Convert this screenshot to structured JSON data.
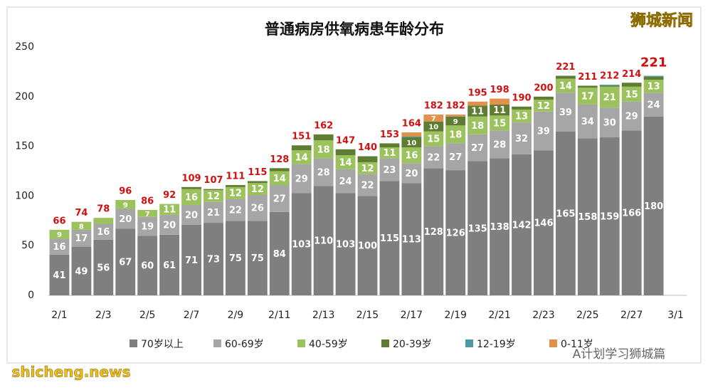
{
  "chart_data": {
    "type": "stacked-bar",
    "title": "普通病房供氧病患年龄分布",
    "categories": [
      "2/1",
      null,
      "2/3",
      null,
      "2/5",
      null,
      "2/7",
      null,
      "2/9",
      null,
      "2/11",
      null,
      "2/13",
      null,
      "2/15",
      null,
      "2/17",
      null,
      "2/19",
      null,
      "2/21",
      null,
      "2/23",
      null,
      "2/25",
      null,
      "2/27",
      null,
      "3/1"
    ],
    "series": [
      {
        "name": "70岁以上",
        "color": "#7f7f7f",
        "values": [
          41,
          49,
          56,
          67,
          60,
          61,
          71,
          73,
          75,
          75,
          84,
          103,
          110,
          103,
          100,
          115,
          113,
          128,
          126,
          135,
          138,
          142,
          146,
          165,
          158,
          159,
          166,
          180,
          null
        ]
      },
      {
        "name": "60-69岁",
        "color": "#a6a6a6",
        "values": [
          16,
          17,
          16,
          20,
          19,
          20,
          20,
          21,
          22,
          26,
          27,
          29,
          28,
          24,
          22,
          23,
          20,
          22,
          27,
          27,
          28,
          32,
          39,
          39,
          34,
          30,
          29,
          24,
          null
        ]
      },
      {
        "name": "40-59岁",
        "color": "#9cc25e",
        "values": [
          9,
          8,
          6,
          9,
          7,
          11,
          16,
          12,
          12,
          12,
          14,
          14,
          18,
          14,
          12,
          11,
          16,
          15,
          18,
          18,
          15,
          13,
          12,
          14,
          17,
          21,
          15,
          13,
          null
        ]
      },
      {
        "name": "20-39岁",
        "color": "#5e7d32",
        "values": [
          0,
          0,
          0,
          0,
          0,
          0,
          2,
          1,
          2,
          2,
          3,
          5,
          6,
          6,
          6,
          4,
          10,
          10,
          9,
          11,
          11,
          3,
          3,
          3,
          2,
          1,
          4,
          3,
          null
        ]
      },
      {
        "name": "12-19岁",
        "color": "#4a9aa3",
        "values": [
          0,
          0,
          0,
          0,
          0,
          0,
          0,
          0,
          0,
          0,
          0,
          0,
          0,
          0,
          0,
          0,
          1,
          0,
          0,
          0,
          0,
          0,
          0,
          0,
          0,
          1,
          0,
          1,
          null
        ]
      },
      {
        "name": "0-11岁",
        "color": "#e0914a",
        "values": [
          0,
          0,
          0,
          0,
          0,
          0,
          0,
          0,
          0,
          0,
          0,
          0,
          0,
          0,
          0,
          0,
          4,
          7,
          2,
          4,
          6,
          0,
          0,
          0,
          0,
          0,
          0,
          0,
          null
        ]
      }
    ],
    "totals": [
      66,
      74,
      78,
      96,
      86,
      92,
      109,
      107,
      111,
      115,
      128,
      151,
      162,
      147,
      140,
      153,
      164,
      182,
      182,
      195,
      198,
      190,
      200,
      221,
      211,
      212,
      214,
      221,
      null
    ],
    "ylim": [
      0,
      250
    ],
    "yticks": [
      0,
      50,
      100,
      150,
      200,
      250
    ],
    "grid": false
  },
  "watermark": "狮城新闻",
  "source": "A计划学习狮城篇",
  "site": "shicheng.news"
}
